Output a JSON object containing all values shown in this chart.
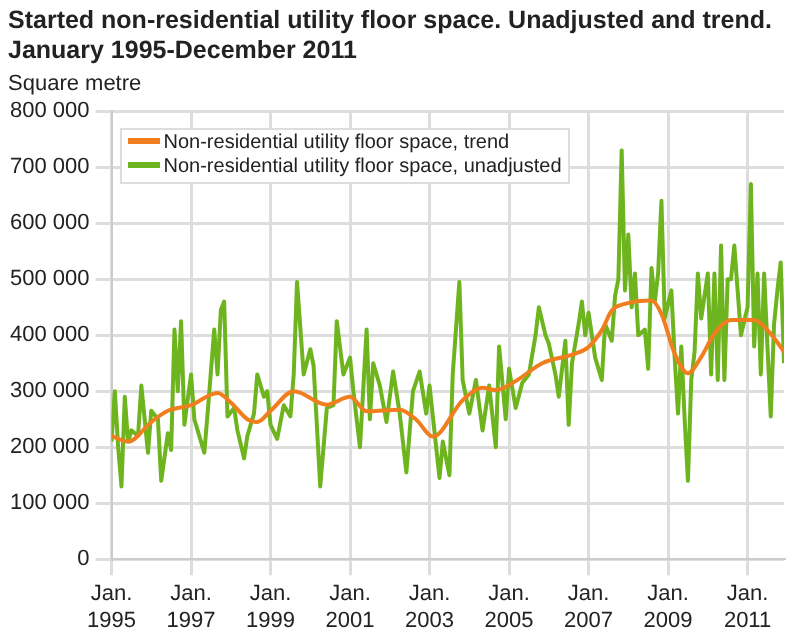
{
  "chart_data": {
    "type": "line",
    "title": "Started non-residential utility floor space. Unadjusted and trend. January 1995-December 2011",
    "ylabel": "Square metre",
    "xlim": [
      "1995-01",
      "2011-12"
    ],
    "xticks": [
      {
        "value": "1995-01",
        "label": "Jan.\n1995"
      },
      {
        "value": "1997-01",
        "label": "Jan.\n1997"
      },
      {
        "value": "1999-01",
        "label": "Jan.\n1999"
      },
      {
        "value": "2001-01",
        "label": "Jan.\n2001"
      },
      {
        "value": "2003-01",
        "label": "Jan.\n2003"
      },
      {
        "value": "2005-01",
        "label": "Jan.\n2005"
      },
      {
        "value": "2007-01",
        "label": "Jan.\n2007"
      },
      {
        "value": "2009-01",
        "label": "Jan.\n2009"
      },
      {
        "value": "2011-01",
        "label": "Jan.\n2011"
      }
    ],
    "ylim": [
      0,
      800000
    ],
    "yticks": [
      0,
      {
        "value": 100000,
        "label": "100 000"
      },
      {
        "value": 200000,
        "label": "200 000"
      },
      {
        "value": 300000,
        "label": "300 000"
      },
      {
        "value": 400000,
        "label": "400 000"
      },
      {
        "value": 500000,
        "label": "500 000"
      },
      {
        "value": 600000,
        "label": "600 000"
      },
      {
        "value": 700000,
        "label": "700 000"
      },
      {
        "value": 800000,
        "label": "800 000"
      }
    ],
    "grid": true,
    "legend": "top left",
    "marker": "none",
    "line_style": "solid",
    "series": [
      {
        "name": "Non-residential utility floor space, trend",
        "color": "#f07d1e",
        "x": [
          "1995-01",
          "1995-06",
          "1996-01",
          "1996-06",
          "1997-01",
          "1997-09",
          "1998-01",
          "1998-06",
          "1998-09",
          "1999-01",
          "1999-08",
          "2000-06",
          "2001-01",
          "2001-06",
          "2002-04",
          "2002-09",
          "2003-02",
          "2003-11",
          "2004-05",
          "2004-09",
          "2005-03",
          "2005-11",
          "2006-09",
          "2007-01",
          "2007-05",
          "2007-08",
          "2007-12",
          "2008-08",
          "2008-11",
          "2009-03",
          "2009-07",
          "2009-11",
          "2010-03",
          "2010-08",
          "2011-03",
          "2011-07",
          "2011-11",
          "2011-12"
        ],
        "values": [
          220000,
          210000,
          245000,
          265000,
          275000,
          297000,
          280000,
          250000,
          245000,
          265000,
          300000,
          276000,
          290000,
          264000,
          267000,
          249000,
          219000,
          284000,
          306000,
          302000,
          318000,
          350000,
          367000,
          379000,
          409000,
          444000,
          456000,
          462000,
          438000,
          367000,
          332000,
          361000,
          403000,
          427000,
          427000,
          409000,
          379000,
          370000
        ]
      },
      {
        "name": "Non-residential utility floor space, unadjusted",
        "color": "#6eb41e",
        "x": [
          "1995-01",
          "1995-02",
          "1995-03",
          "1995-04",
          "1995-05",
          "1995-06",
          "1995-07",
          "1995-09",
          "1995-10",
          "1995-11",
          "1995-12",
          "1996-01",
          "1996-03",
          "1996-04",
          "1996-06",
          "1996-07",
          "1996-08",
          "1996-09",
          "1996-10",
          "1996-11",
          "1997-01",
          "1997-02",
          "1997-03",
          "1997-05",
          "1997-06",
          "1997-08",
          "1997-09",
          "1997-10",
          "1997-11",
          "1997-12",
          "1998-02",
          "1998-03",
          "1998-05",
          "1998-06",
          "1998-08",
          "1998-09",
          "1998-11",
          "1998-12",
          "1999-01",
          "1999-03",
          "1999-05",
          "1999-07",
          "1999-08",
          "1999-09",
          "1999-11",
          "2000-01",
          "2000-02",
          "2000-04",
          "2000-06",
          "2000-08",
          "2000-09",
          "2000-11",
          "2001-01",
          "2001-02",
          "2001-04",
          "2001-06",
          "2001-07",
          "2001-08",
          "2001-10",
          "2001-12",
          "2002-02",
          "2002-04",
          "2002-06",
          "2002-08",
          "2002-10",
          "2002-12",
          "2003-01",
          "2003-03",
          "2003-04",
          "2003-05",
          "2003-07",
          "2003-08",
          "2003-10",
          "2003-11",
          "2004-01",
          "2004-03",
          "2004-05",
          "2004-07",
          "2004-09",
          "2004-10",
          "2004-12",
          "2005-01",
          "2005-03",
          "2005-05",
          "2005-07",
          "2005-09",
          "2005-10",
          "2005-12",
          "2006-01",
          "2006-03",
          "2006-04",
          "2006-06",
          "2006-07",
          "2006-08",
          "2006-10",
          "2006-11",
          "2006-12",
          "2007-01",
          "2007-03",
          "2007-05",
          "2007-06",
          "2007-08",
          "2007-09",
          "2007-10",
          "2007-11",
          "2007-12",
          "2008-01",
          "2008-02",
          "2008-03",
          "2008-04",
          "2008-06",
          "2008-07",
          "2008-08",
          "2008-09",
          "2008-10",
          "2008-11",
          "2008-12",
          "2009-02",
          "2009-03",
          "2009-04",
          "2009-05",
          "2009-06",
          "2009-07",
          "2009-08",
          "2009-09",
          "2009-10",
          "2009-11",
          "2010-01",
          "2010-02",
          "2010-03",
          "2010-04",
          "2010-05",
          "2010-06",
          "2010-07",
          "2010-08",
          "2010-09",
          "2010-11",
          "2011-01",
          "2011-02",
          "2011-03",
          "2011-04",
          "2011-05",
          "2011-06",
          "2011-07",
          "2011-08",
          "2011-09",
          "2011-10",
          "2011-11",
          "2011-12"
        ],
        "values": [
          210000,
          300000,
          200000,
          130000,
          290000,
          210000,
          230000,
          220000,
          310000,
          250000,
          190000,
          265000,
          250000,
          140000,
          225000,
          195000,
          410000,
          300000,
          425000,
          240000,
          330000,
          250000,
          230000,
          190000,
          260000,
          410000,
          330000,
          445000,
          460000,
          255000,
          270000,
          230000,
          180000,
          220000,
          260000,
          330000,
          290000,
          300000,
          240000,
          215000,
          275000,
          255000,
          330000,
          495000,
          330000,
          375000,
          345000,
          130000,
          270000,
          275000,
          425000,
          330000,
          360000,
          300000,
          200000,
          410000,
          250000,
          350000,
          310000,
          245000,
          335000,
          260000,
          155000,
          300000,
          335000,
          260000,
          310000,
          200000,
          145000,
          210000,
          150000,
          330000,
          495000,
          320000,
          260000,
          320000,
          230000,
          310000,
          200000,
          380000,
          250000,
          340000,
          270000,
          315000,
          330000,
          400000,
          450000,
          400000,
          385000,
          330000,
          290000,
          390000,
          240000,
          350000,
          420000,
          460000,
          400000,
          440000,
          360000,
          320000,
          420000,
          390000,
          470000,
          500000,
          730000,
          480000,
          580000,
          450000,
          510000,
          400000,
          410000,
          340000,
          520000,
          460000,
          510000,
          640000,
          430000,
          480000,
          360000,
          260000,
          380000,
          250000,
          140000,
          320000,
          370000,
          510000,
          430000,
          510000,
          330000,
          510000,
          320000,
          560000,
          320000,
          500000,
          500000,
          560000,
          400000,
          450000,
          670000,
          380000,
          510000,
          330000,
          510000,
          380000,
          255000,
          420000,
          480000,
          530000,
          350000
        ]
      }
    ]
  }
}
